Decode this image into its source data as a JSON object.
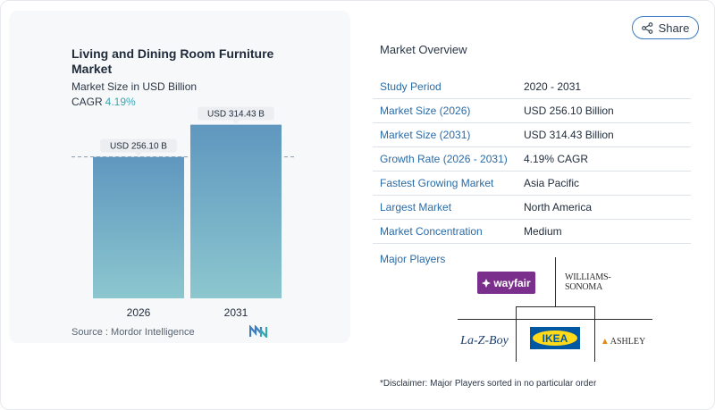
{
  "header": {
    "title": "Living and Dining Room Furniture Market",
    "subtitle": "Market Size in USD Billion",
    "cagr_label": "CAGR",
    "cagr_value": "4.19%"
  },
  "chart_data": {
    "type": "bar",
    "categories": [
      "2026",
      "2031"
    ],
    "values": [
      256.1,
      314.43
    ],
    "data_labels": [
      "USD 256.10 B",
      "USD 314.43 B"
    ],
    "title": "Living and Dining Room Furniture Market",
    "ylabel": "Market Size in USD Billion",
    "ylim": [
      0,
      330
    ],
    "grid": false,
    "reference_line": "dashed line at 2026 value",
    "colors": {
      "bar_top": "#5f97bf",
      "bar_bottom": "#8cc7cf"
    }
  },
  "source": {
    "label": "Source :",
    "name": "Mordor Intelligence"
  },
  "share": {
    "label": "Share"
  },
  "overview": {
    "title": "Market Overview",
    "rows": [
      {
        "label": "Study Period",
        "value": "2020 - 2031"
      },
      {
        "label": "Market Size (2026)",
        "value": "USD 256.10 Billion"
      },
      {
        "label": "Market Size (2031)",
        "value": "USD 314.43 Billion"
      },
      {
        "label": "Growth Rate (2026 - 2031)",
        "value": "4.19% CAGR"
      },
      {
        "label": "Fastest Growing Market",
        "value": "Asia Pacific"
      },
      {
        "label": "Largest Market",
        "value": "North America"
      },
      {
        "label": "Market Concentration",
        "value": "Medium"
      }
    ]
  },
  "players": {
    "title": "Major Players",
    "logos": {
      "wayfair": "wayfair",
      "williams_sonoma": "WILLIAMS-SONOMA",
      "lazboy": "La-Z-Boy",
      "ikea": "IKEA",
      "ashley": "ASHLEY"
    }
  },
  "disclaimer": "*Disclaimer: Major Players sorted in no particular order",
  "colors": {
    "accent": "#2a6ba6",
    "cagr": "#3aa6b2",
    "wayfair": "#7b2f8c",
    "ikea_blue": "#0058a3",
    "ikea_yellow": "#ffda1a"
  }
}
